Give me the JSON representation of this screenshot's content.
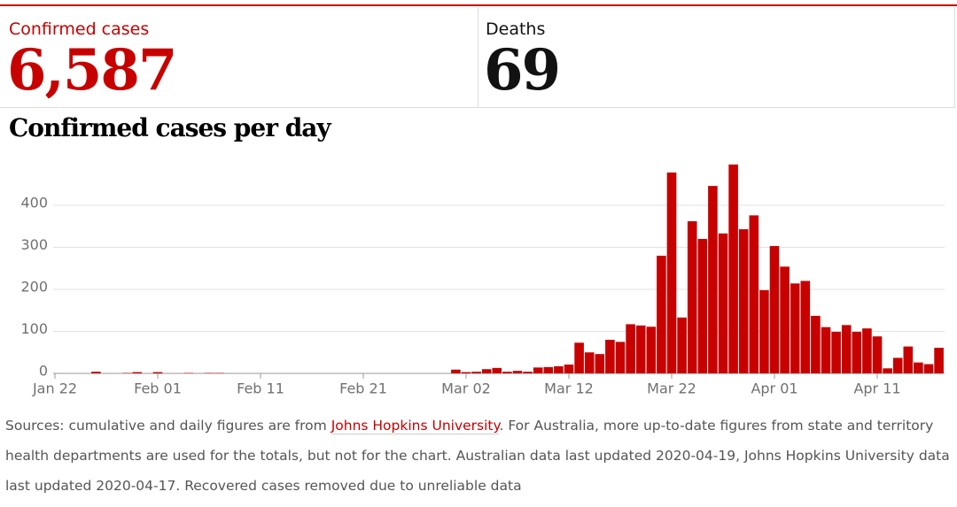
{
  "header": {
    "cases_label": "Confirmed cases",
    "cases_value": "6,587",
    "deaths_label": "Deaths",
    "deaths_value": "69"
  },
  "chart_data": {
    "type": "bar",
    "title": "Confirmed cases per day",
    "color": "#c70000",
    "categories": [
      "Jan 22",
      null,
      null,
      null,
      null,
      null,
      null,
      null,
      null,
      null,
      "Feb 01",
      null,
      null,
      null,
      null,
      null,
      null,
      null,
      null,
      null,
      "Feb 11",
      null,
      null,
      null,
      null,
      null,
      null,
      null,
      null,
      null,
      "Feb 21",
      null,
      null,
      null,
      null,
      null,
      null,
      null,
      null,
      null,
      "Mar 02",
      null,
      null,
      null,
      null,
      null,
      null,
      null,
      null,
      null,
      "Mar 12",
      null,
      null,
      null,
      null,
      null,
      null,
      null,
      null,
      null,
      "Mar 22",
      null,
      null,
      null,
      null,
      null,
      null,
      null,
      null,
      null,
      "Apr 01",
      null,
      null,
      null,
      null,
      null,
      null,
      null,
      null,
      null,
      "Apr 11",
      null,
      null,
      null,
      null,
      null,
      null
    ],
    "values": [
      0,
      0,
      0,
      0,
      4,
      0,
      0,
      1,
      3,
      0,
      3,
      0,
      0,
      1,
      0,
      1,
      1,
      0,
      0,
      0,
      0,
      0,
      0,
      0,
      0,
      0,
      0,
      0,
      0,
      0,
      0,
      0,
      0,
      0,
      0,
      0,
      0,
      0,
      0,
      9,
      3,
      4,
      10,
      13,
      4,
      6,
      4,
      14,
      15,
      17,
      21,
      73,
      50,
      46,
      80,
      75,
      117,
      114,
      111,
      280,
      478,
      133,
      362,
      320,
      446,
      333,
      497,
      343,
      376,
      198,
      303,
      254,
      214,
      220,
      137,
      110,
      99,
      115,
      99,
      107,
      88,
      12,
      37,
      64,
      26,
      22,
      61
    ],
    "ylim": [
      0,
      520
    ],
    "yticks": [
      0,
      100,
      200,
      300,
      400
    ],
    "grid": true
  },
  "sources": {
    "text_before": "Sources: cumulative and daily figures are from ",
    "link": "Johns Hopkins University",
    "text_after": ". For Australia, more up-to-date figures from state and territory health departments are used for the totals, but not for the chart. Australian data last updated 2020-04-19, Johns Hopkins University data last updated 2020-04-17. Recovered cases removed due to unreliable data"
  }
}
